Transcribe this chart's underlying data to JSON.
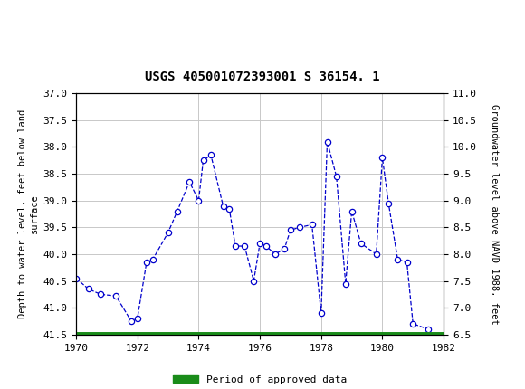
{
  "title": "USGS 405001072393001 S 36154. 1",
  "x_data": [
    1970.0,
    1970.4,
    1970.8,
    1971.3,
    1971.8,
    1972.0,
    1972.3,
    1972.5,
    1973.0,
    1973.3,
    1973.7,
    1974.0,
    1974.15,
    1974.4,
    1974.8,
    1975.0,
    1975.2,
    1975.5,
    1975.8,
    1976.0,
    1976.2,
    1976.5,
    1976.8,
    1977.0,
    1977.3,
    1977.7,
    1978.0,
    1978.2,
    1978.5,
    1978.8,
    1979.0,
    1979.3,
    1979.8,
    1980.0,
    1980.2,
    1980.5,
    1980.8,
    1981.0,
    1981.5
  ],
  "y_data": [
    40.45,
    40.65,
    40.75,
    40.78,
    41.25,
    41.2,
    40.15,
    40.1,
    39.6,
    39.2,
    38.65,
    39.0,
    38.25,
    38.15,
    39.1,
    39.15,
    39.85,
    39.85,
    40.5,
    39.8,
    39.85,
    40.0,
    39.9,
    39.55,
    39.5,
    39.45,
    41.1,
    37.9,
    38.55,
    40.55,
    39.2,
    39.8,
    40.0,
    38.2,
    39.05,
    40.1,
    40.15,
    41.3,
    41.4
  ],
  "xlim": [
    1970,
    1982
  ],
  "ylim_left": [
    41.5,
    37.0
  ],
  "ylim_right": [
    6.5,
    11.0
  ],
  "xticks": [
    1970,
    1972,
    1974,
    1976,
    1978,
    1980,
    1982
  ],
  "yticks_left": [
    37.0,
    37.5,
    38.0,
    38.5,
    39.0,
    39.5,
    40.0,
    40.5,
    41.0,
    41.5
  ],
  "yticks_right": [
    11.0,
    10.5,
    10.0,
    9.5,
    9.0,
    8.5,
    8.0,
    7.5,
    7.0,
    6.5
  ],
  "ylabel_left": "Depth to water level, feet below land\nsurface",
  "ylabel_right": "Groundwater level above NAVD 1988, feet",
  "line_color": "#0000cc",
  "marker_color": "#0000cc",
  "line_style": "--",
  "marker_style": "o",
  "legend_label": "Period of approved data",
  "legend_color": "#1a8c1a",
  "header_color": "#1a6b3c",
  "background_color": "#ffffff",
  "plot_background": "#ffffff",
  "grid_color": "#c8c8c8",
  "font_family": "DejaVu Sans Mono",
  "title_fontsize": 10,
  "tick_fontsize": 8,
  "label_fontsize": 7.5
}
